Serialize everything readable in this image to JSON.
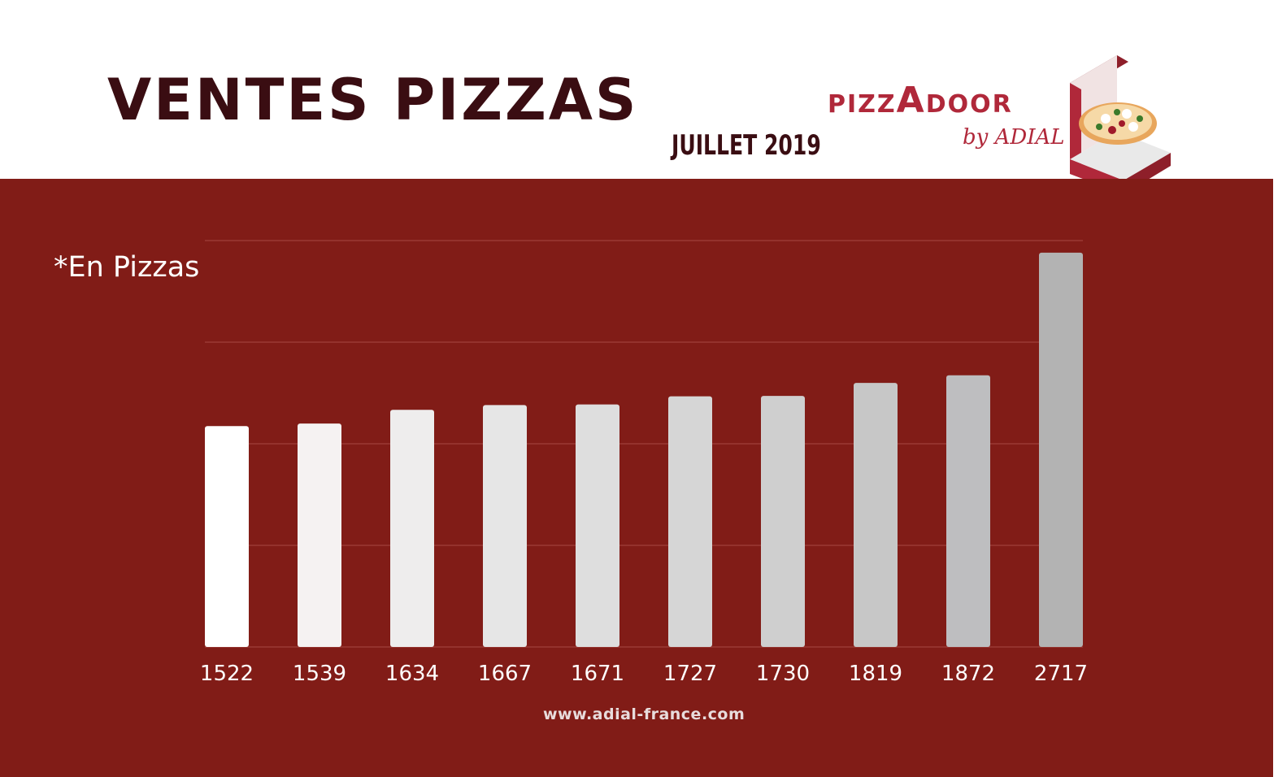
{
  "header": {
    "title": "VENTES PIZZAS",
    "subtitle": "JUILLET 2019"
  },
  "logo": {
    "brand_prefix": "PIZZ",
    "brand_a": "A",
    "brand_suffix": "DOOR",
    "by_line": "by ADIAL",
    "brand_color": "#b0283a",
    "icon": "pizza-box-icon"
  },
  "unit_note": "*En Pizzas",
  "chart_data": {
    "type": "bar",
    "categories": [
      "1522",
      "1539",
      "1634",
      "1667",
      "1671",
      "1727",
      "1730",
      "1819",
      "1872",
      "2717"
    ],
    "values": [
      1522,
      1539,
      1634,
      1667,
      1671,
      1727,
      1730,
      1819,
      1872,
      2717
    ],
    "title": "",
    "xlabel": "",
    "ylabel": "",
    "ylim": [
      0,
      2800
    ],
    "grid": true,
    "legend": "none",
    "bar_colors": [
      "#ffffff",
      "#f5f2f2",
      "#eeeded",
      "#e6e6e6",
      "#dedede",
      "#d6d6d6",
      "#cfcfcf",
      "#c7c7c7",
      "#bebec0",
      "#b3b3b3"
    ],
    "background": "#811c17",
    "gridline_color": "#9a3a35"
  },
  "footer": {
    "url": "www.adial-france.com"
  }
}
